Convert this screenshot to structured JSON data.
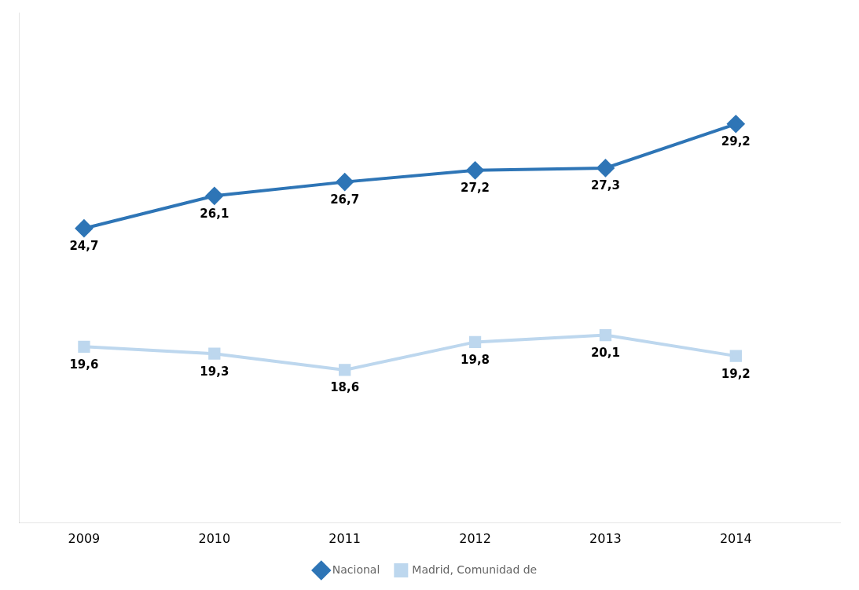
{
  "chart_data": {
    "type": "line",
    "x": [
      2009,
      2010,
      2011,
      2012,
      2013,
      2014
    ],
    "series": [
      {
        "name": "Nacional",
        "color": "#2e75b6",
        "marker": "diamond",
        "values": [
          24.7,
          26.1,
          26.7,
          27.2,
          27.3,
          29.2
        ],
        "value_labels": [
          "24,7",
          "26,1",
          "26,7",
          "27,2",
          "27,3",
          "29,2"
        ]
      },
      {
        "name": "Madrid, Comunidad de",
        "color": "#bdd7ee",
        "marker": "square",
        "values": [
          19.6,
          19.3,
          18.6,
          19.8,
          20.1,
          19.2
        ],
        "value_labels": [
          "19,6",
          "19,3",
          "18,6",
          "19,8",
          "20,1",
          "19,2"
        ]
      }
    ],
    "xlim": [
      2008.5,
      2014.8
    ],
    "xticks": [
      2009,
      2010,
      2011,
      2012,
      2013,
      2014
    ],
    "ylim": [
      12,
      34
    ],
    "tick_labels": "x",
    "grid": false,
    "legend": "bottom",
    "data_labels": true
  }
}
